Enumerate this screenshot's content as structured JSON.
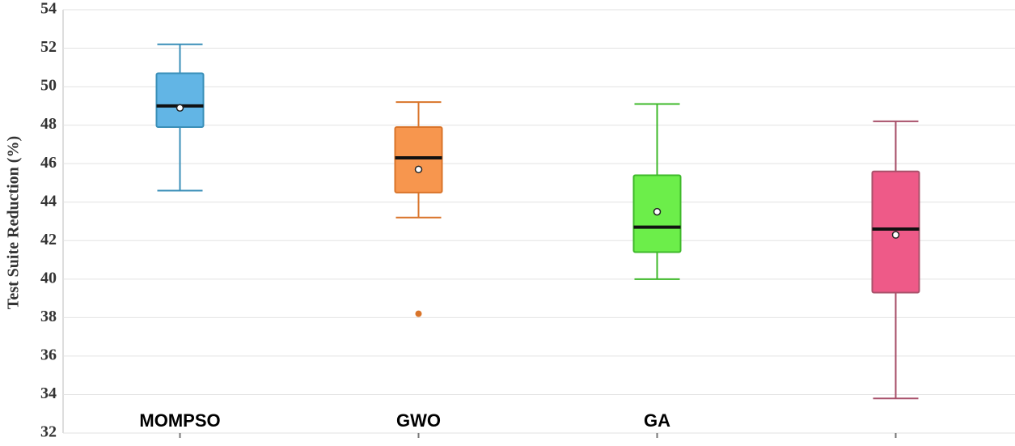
{
  "chart_data": {
    "type": "box",
    "y_label": "Test Suite Reduction (%)",
    "categories": [
      "MOMPSO",
      "GWO",
      "GA",
      null
    ],
    "boxes": [
      {
        "whislo": 44.6,
        "q1": 47.9,
        "med": 49.0,
        "q3": 50.7,
        "whishi": 52.2,
        "mean": 48.9,
        "outliers": [],
        "color": "#62b5e5",
        "edge": "#3a8fb8"
      },
      {
        "whislo": 43.2,
        "q1": 44.5,
        "med": 46.3,
        "q3": 47.9,
        "whishi": 49.2,
        "mean": 45.7,
        "outliers": [
          38.2
        ],
        "color": "#f7964e",
        "edge": "#d9742a"
      },
      {
        "whislo": 40.0,
        "q1": 41.4,
        "med": 42.7,
        "q3": 45.4,
        "whishi": 49.1,
        "mean": 43.5,
        "outliers": [],
        "color": "#6cee4a",
        "edge": "#3eb82a"
      },
      {
        "whislo": 33.8,
        "q1": 39.3,
        "med": 42.6,
        "q3": 45.6,
        "whishi": 48.2,
        "mean": 42.3,
        "outliers": [],
        "color": "#ee5a88",
        "edge": "#a8506a"
      }
    ],
    "ylim": [
      32,
      54
    ],
    "yticks": [
      32,
      34,
      36,
      38,
      40,
      42,
      44,
      46,
      48,
      50,
      52,
      54
    ],
    "grid": true
  }
}
